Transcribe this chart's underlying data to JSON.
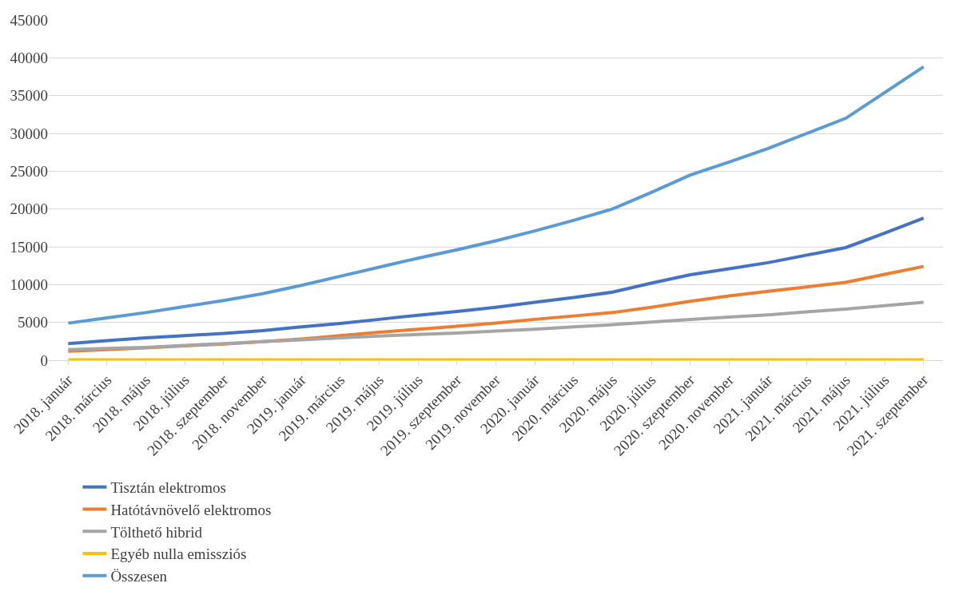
{
  "chart_data": {
    "type": "line",
    "categories": [
      "2018. január",
      "2018. március",
      "2018. május",
      "2018. július",
      "2018. szeptember",
      "2018. november",
      "2019. január",
      "2019. március",
      "2019. május",
      "2019. július",
      "2019. szeptember",
      "2019. november",
      "2020. január",
      "2020. március",
      "2020. május",
      "2020. július",
      "2020. szeptember",
      "2020. november",
      "2021. január",
      "2021. március",
      "2021. május",
      "2021. július",
      "2021. szeptember"
    ],
    "series": [
      {
        "name": "Tisztán elektromos",
        "color": "#4472c4",
        "values": [
          2200,
          2600,
          2950,
          3250,
          3550,
          3900,
          4400,
          4850,
          5400,
          5950,
          6450,
          7000,
          7650,
          8300,
          9000,
          10200,
          11300,
          12100,
          12900,
          13900,
          14900,
          16800,
          18800
        ]
      },
      {
        "name": "Hatótávnövelő elektromos",
        "color": "#ed7d31",
        "values": [
          1200,
          1400,
          1650,
          1900,
          2150,
          2450,
          2800,
          3250,
          3700,
          4100,
          4500,
          4900,
          5400,
          5850,
          6300,
          7000,
          7800,
          8500,
          9100,
          9700,
          10300,
          11350,
          12400
        ]
      },
      {
        "name": "Tölthető hibrid",
        "color": "#a5a5a5",
        "values": [
          1400,
          1550,
          1700,
          1950,
          2200,
          2450,
          2700,
          2950,
          3200,
          3400,
          3600,
          3850,
          4100,
          4400,
          4700,
          5050,
          5400,
          5700,
          6000,
          6400,
          6750,
          7200,
          7650
        ]
      },
      {
        "name": "Egyéb nulla emissziós",
        "color": "#ffc000",
        "values": [
          50,
          50,
          50,
          50,
          50,
          50,
          50,
          50,
          50,
          50,
          50,
          50,
          50,
          50,
          50,
          50,
          50,
          50,
          50,
          50,
          50,
          50,
          50
        ]
      },
      {
        "name": "Összesen",
        "color": "#5b9bd5",
        "values": [
          4900,
          5600,
          6300,
          7100,
          7900,
          8800,
          9900,
          11100,
          12300,
          13500,
          14600,
          15800,
          17100,
          18500,
          20000,
          22200,
          24500,
          26200,
          28000,
          30000,
          32000,
          35400,
          38800
        ]
      }
    ],
    "ylim": [
      0,
      45000
    ],
    "yticks": [
      0,
      5000,
      10000,
      15000,
      20000,
      25000,
      30000,
      35000,
      40000,
      45000
    ],
    "grid": "y",
    "legend": "bottom",
    "marker": "none",
    "line_style": "solid"
  }
}
